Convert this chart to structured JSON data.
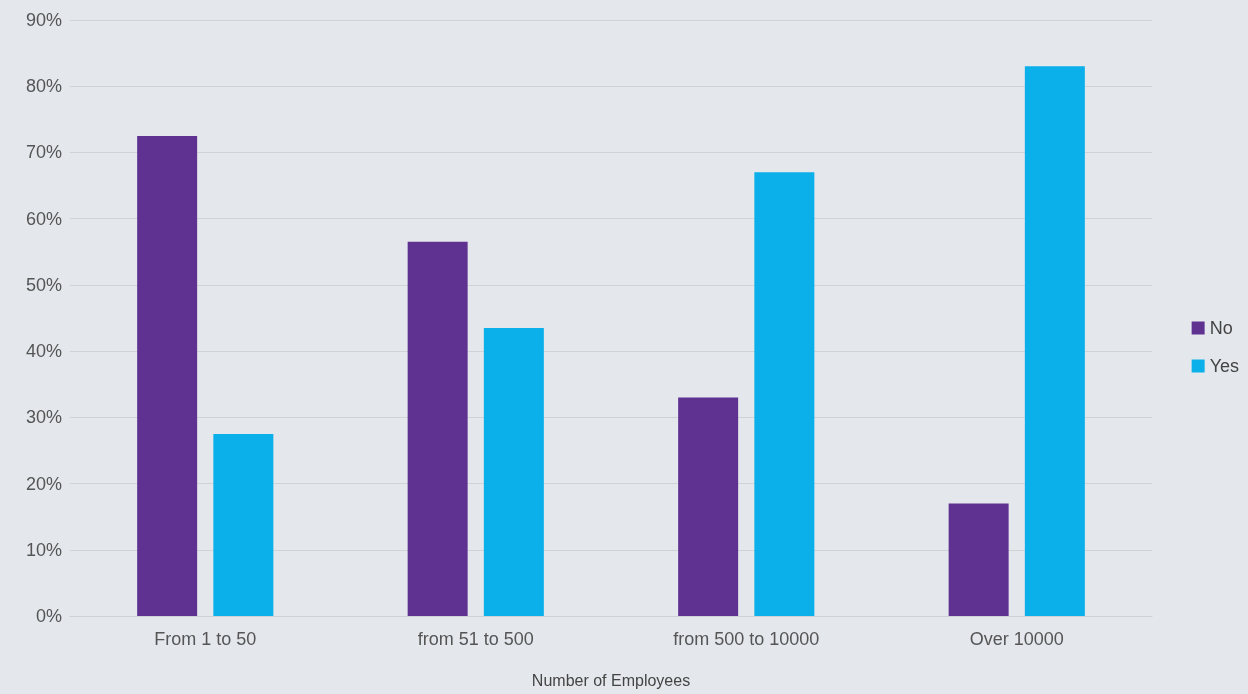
{
  "chart_data": {
    "type": "bar",
    "xlabel": "Number of Employees",
    "categories": [
      "From 1 to 50",
      "from 51 to 500",
      "from 500 to 10000",
      "Over 10000"
    ],
    "series": [
      {
        "name": "No",
        "color": "#5f3292",
        "values": [
          72.5,
          56.5,
          33,
          17
        ]
      },
      {
        "name": "Yes",
        "color": "#0bafea",
        "values": [
          27.5,
          43.5,
          67,
          83
        ]
      }
    ],
    "ylim": [
      0,
      90
    ],
    "yticks": [
      {
        "value": 0,
        "label": "0%"
      },
      {
        "value": 10,
        "label": "10%"
      },
      {
        "value": 20,
        "label": "20%"
      },
      {
        "value": 30,
        "label": "30%"
      },
      {
        "value": 40,
        "label": "40%"
      },
      {
        "value": 50,
        "label": "50%"
      },
      {
        "value": 60,
        "label": "60%"
      },
      {
        "value": 70,
        "label": "70%"
      },
      {
        "value": 80,
        "label": "80%"
      },
      {
        "value": 90,
        "label": "90%"
      }
    ],
    "grid": "y",
    "legend": "right"
  }
}
